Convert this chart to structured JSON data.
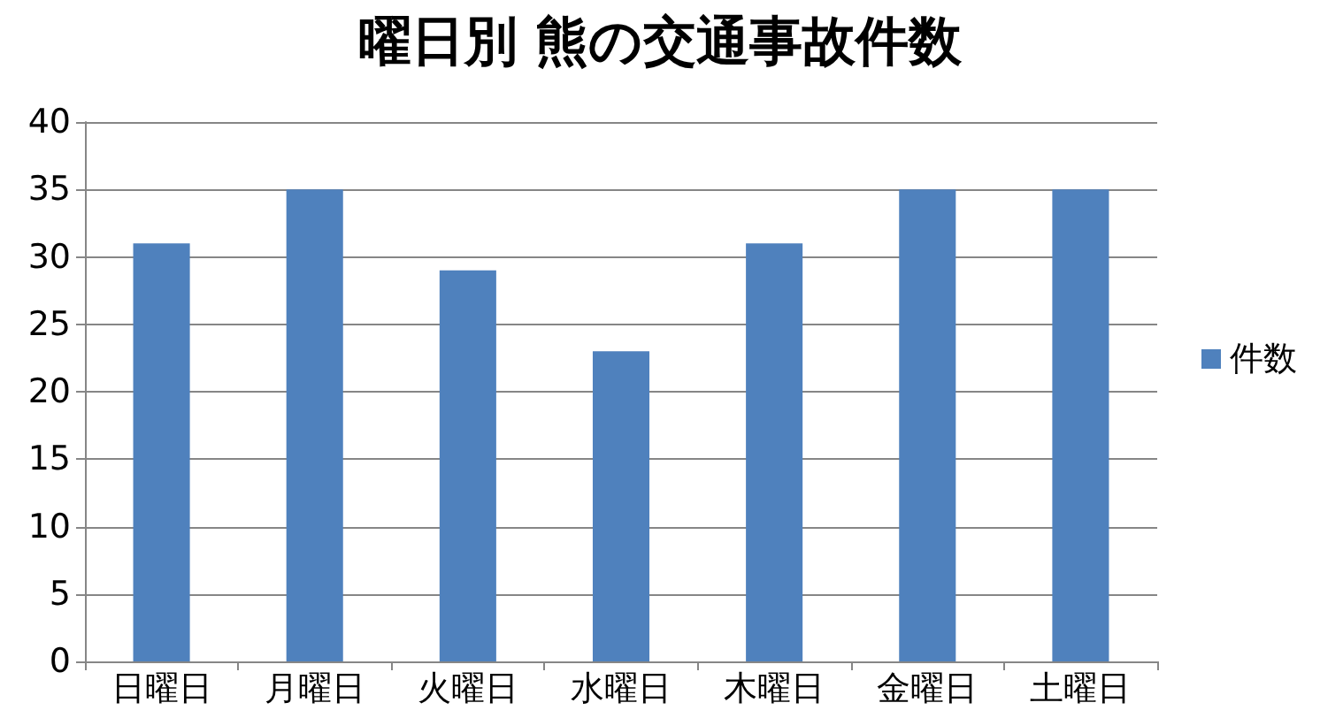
{
  "chart_data": {
    "type": "bar",
    "title": "曜日別 熊の交通事故件数",
    "categories": [
      "日曜日",
      "月曜日",
      "火曜日",
      "水曜日",
      "木曜日",
      "金曜日",
      "土曜日"
    ],
    "series": [
      {
        "name": "件数",
        "color": "#4f81bd",
        "values": [
          31,
          35,
          29,
          23,
          31,
          35,
          35
        ]
      }
    ],
    "ylim": [
      0,
      40
    ],
    "yticks": [
      0,
      5,
      10,
      15,
      20,
      25,
      30,
      35,
      40
    ],
    "grid": "y",
    "legend": "right"
  }
}
